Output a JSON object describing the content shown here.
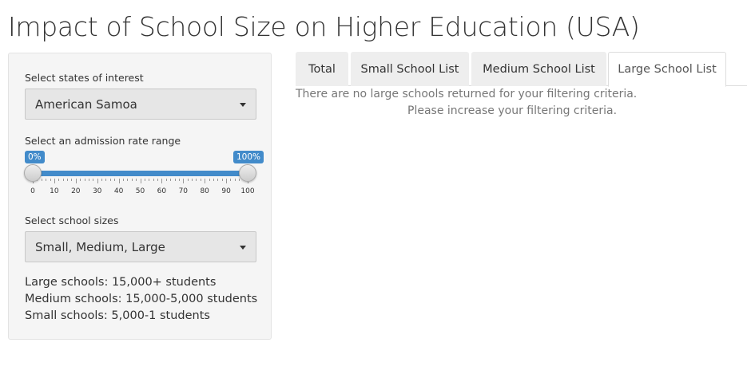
{
  "header": {
    "title": "Impact of School Size on Higher Education (USA)"
  },
  "sidebar": {
    "states": {
      "label": "Select states of interest",
      "value": "American Samoa"
    },
    "admission": {
      "label": "Select an admission rate range",
      "min_badge": "0%",
      "max_badge": "100%",
      "range_from": 0,
      "range_to": 100,
      "ticks": [
        "0",
        "10",
        "20",
        "30",
        "40",
        "50",
        "60",
        "70",
        "80",
        "90",
        "100"
      ]
    },
    "sizes": {
      "label": "Select school sizes",
      "value": "Small, Medium, Large"
    },
    "info": [
      "Large schools: 15,000+ students",
      "Medium schools: 15,000-5,000 students",
      "Small schools: 5,000-1 students"
    ]
  },
  "main": {
    "tabs": [
      {
        "label": "Total"
      },
      {
        "label": "Small School List"
      },
      {
        "label": "Medium School List"
      },
      {
        "label": "Large School List"
      }
    ],
    "active_tab": "Large School List",
    "message": [
      "There are no large schools returned for your filtering criteria.",
      "Please increase your filtering criteria."
    ]
  },
  "colors": {
    "accent": "#428bca",
    "panel": "#f5f5f5",
    "muted_text": "#777777"
  }
}
